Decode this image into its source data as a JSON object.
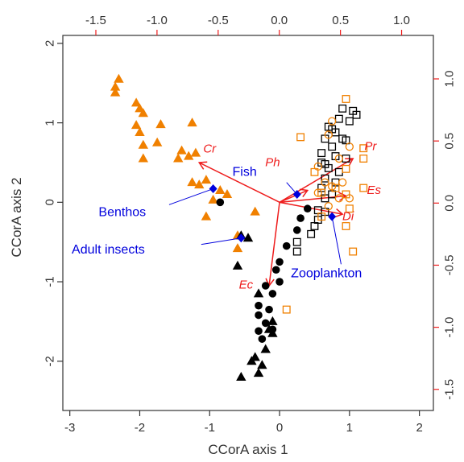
{
  "chart_data": {
    "type": "scatter",
    "xlabel": "CCorA axis 1",
    "ylabel": "CCorA axis 2",
    "xlim": [
      -3.1,
      2.2
    ],
    "ylim": [
      -2.62,
      2.1
    ],
    "xticks": [
      -3,
      -2,
      -1,
      0,
      1,
      2
    ],
    "yticks": [
      -2,
      -1,
      0,
      1,
      2
    ],
    "top_axis": {
      "lim": [
        -1.77,
        1.26
      ],
      "ticks": [
        "-1.5",
        "-1.0",
        "-0.5",
        "0.0",
        "0.5",
        "1.0"
      ],
      "values": [
        -1.5,
        -1.0,
        -0.5,
        0.0,
        0.5,
        1.0
      ]
    },
    "right_axis": {
      "lim": [
        -1.67,
        1.35
      ],
      "ticks": [
        "-1.5",
        "-1.0",
        "-0.5",
        "0.0",
        "0.5",
        "1.0"
      ],
      "values": [
        -1.5,
        -1.0,
        -0.5,
        0.0,
        0.5,
        1.0
      ]
    },
    "colors": {
      "orange": "#f08000",
      "black": "#000000",
      "blue": "#0000dd",
      "red": "#ee1c1c",
      "axis": "#333333",
      "top_axis": "#ee1c1c",
      "right_axis": "#ee1c1c"
    },
    "series": [
      {
        "marker": "triangle-filled",
        "color": "#f08000",
        "points": [
          [
            -2.3,
            1.55
          ],
          [
            -2.35,
            1.45
          ],
          [
            -2.35,
            1.38
          ],
          [
            -2.05,
            1.25
          ],
          [
            -2.0,
            1.18
          ],
          [
            -1.95,
            1.12
          ],
          [
            -2.05,
            0.97
          ],
          [
            -2.0,
            0.88
          ],
          [
            -1.7,
            0.98
          ],
          [
            -1.25,
            1.0
          ],
          [
            -1.75,
            0.75
          ],
          [
            -1.95,
            0.72
          ],
          [
            -1.4,
            0.65
          ],
          [
            -1.2,
            0.62
          ],
          [
            -1.3,
            0.58
          ],
          [
            -1.45,
            0.55
          ],
          [
            -1.95,
            0.55
          ],
          [
            -1.25,
            0.25
          ],
          [
            -1.15,
            0.22
          ],
          [
            -1.05,
            0.28
          ],
          [
            -0.85,
            0.15
          ],
          [
            -0.75,
            0.1
          ],
          [
            -0.95,
            0.03
          ],
          [
            -1.05,
            -0.18
          ],
          [
            -0.35,
            -0.12
          ],
          [
            -0.6,
            -0.42
          ],
          [
            -0.6,
            -0.58
          ]
        ]
      },
      {
        "marker": "triangle-filled",
        "color": "#000000",
        "points": [
          [
            -0.55,
            -0.42
          ],
          [
            -0.45,
            -0.45
          ],
          [
            -0.6,
            -0.8
          ],
          [
            -0.3,
            -1.15
          ],
          [
            -0.1,
            -1.5
          ],
          [
            -0.1,
            -1.65
          ],
          [
            -0.15,
            -1.6
          ],
          [
            -0.2,
            -1.85
          ],
          [
            -0.35,
            -1.95
          ],
          [
            -0.4,
            -2.0
          ],
          [
            -0.25,
            -2.05
          ],
          [
            -0.3,
            -2.15
          ],
          [
            -0.55,
            -2.2
          ]
        ]
      },
      {
        "marker": "circle-filled",
        "color": "#000000",
        "points": [
          [
            -0.85,
            0.0
          ],
          [
            0.4,
            -0.08
          ],
          [
            0.3,
            -0.2
          ],
          [
            0.25,
            -0.35
          ],
          [
            0.1,
            -0.55
          ],
          [
            0.0,
            -0.75
          ],
          [
            -0.05,
            -0.85
          ],
          [
            0.0,
            -1.0
          ],
          [
            -0.2,
            -1.05
          ],
          [
            -0.1,
            -1.15
          ],
          [
            -0.3,
            -1.3
          ],
          [
            -0.15,
            -1.35
          ],
          [
            -0.3,
            -1.42
          ],
          [
            -0.2,
            -1.52
          ],
          [
            -0.1,
            -1.6
          ],
          [
            -0.3,
            -1.62
          ],
          [
            -0.25,
            -1.72
          ]
        ]
      },
      {
        "marker": "square-open",
        "color": "#000000",
        "points": [
          [
            0.9,
            1.18
          ],
          [
            1.05,
            1.15
          ],
          [
            1.1,
            1.1
          ],
          [
            0.85,
            1.05
          ],
          [
            1.0,
            1.02
          ],
          [
            0.7,
            0.95
          ],
          [
            0.75,
            0.92
          ],
          [
            0.8,
            0.88
          ],
          [
            0.65,
            0.8
          ],
          [
            0.9,
            0.8
          ],
          [
            0.95,
            0.78
          ],
          [
            0.75,
            0.7
          ],
          [
            0.6,
            0.62
          ],
          [
            0.8,
            0.58
          ],
          [
            0.95,
            0.55
          ],
          [
            0.6,
            0.5
          ],
          [
            0.65,
            0.48
          ],
          [
            0.7,
            0.43
          ],
          [
            0.85,
            0.38
          ],
          [
            0.65,
            0.3
          ],
          [
            0.8,
            0.25
          ],
          [
            0.6,
            0.18
          ],
          [
            0.75,
            0.1
          ],
          [
            0.65,
            0.05
          ],
          [
            0.55,
            -0.1
          ],
          [
            0.65,
            -0.12
          ],
          [
            0.55,
            -0.22
          ],
          [
            0.5,
            -0.3
          ],
          [
            0.45,
            -0.4
          ],
          [
            0.25,
            -0.5
          ],
          [
            0.25,
            -0.62
          ]
        ]
      },
      {
        "marker": "square-open",
        "color": "#f08000",
        "points": [
          [
            0.95,
            1.3
          ],
          [
            0.3,
            0.82
          ],
          [
            1.2,
            0.68
          ],
          [
            0.95,
            0.42
          ],
          [
            1.2,
            0.55
          ],
          [
            0.5,
            0.38
          ],
          [
            0.8,
            0.18
          ],
          [
            1.2,
            0.18
          ],
          [
            0.6,
            0.12
          ],
          [
            0.95,
            0.1
          ],
          [
            1.0,
            -0.08
          ],
          [
            0.6,
            -0.18
          ],
          [
            0.95,
            -0.3
          ],
          [
            1.05,
            -0.62
          ],
          [
            0.1,
            -1.35
          ]
        ]
      },
      {
        "marker": "circle-open",
        "color": "#f08000",
        "points": [
          [
            0.75,
            1.02
          ],
          [
            0.7,
            0.85
          ],
          [
            1.0,
            0.7
          ],
          [
            0.85,
            0.55
          ],
          [
            0.55,
            0.45
          ],
          [
            0.65,
            0.25
          ],
          [
            0.9,
            0.25
          ],
          [
            0.75,
            0.2
          ],
          [
            0.55,
            0.12
          ],
          [
            0.85,
            0.05
          ],
          [
            1.0,
            0.05
          ],
          [
            0.7,
            -0.05
          ]
        ]
      }
    ],
    "vectors": [
      {
        "label": "Cr",
        "to": [
          -1.15,
          0.5
        ],
        "label_at": [
          -1.0,
          0.67
        ]
      },
      {
        "label": "Ph",
        "to": [
          0.4,
          0.15
        ],
        "label_at": [
          -0.1,
          0.5
        ]
      },
      {
        "label": "Pr",
        "to": [
          1.05,
          0.55
        ],
        "label_at": [
          1.3,
          0.7
        ]
      },
      {
        "label": "Es",
        "to": [
          0.95,
          0.08
        ],
        "label_at": [
          1.35,
          0.15
        ]
      },
      {
        "label": "Di",
        "to": [
          0.9,
          -0.15
        ],
        "label_at": [
          0.98,
          -0.18
        ]
      },
      {
        "label": "Ec",
        "to": [
          -0.15,
          -1.05
        ],
        "label_at": [
          -0.48,
          -1.04
        ]
      }
    ],
    "vector_origin": [
      0.0,
      0.0
    ],
    "groups": [
      {
        "label": "Benthos",
        "point": [
          -0.95,
          0.17
        ],
        "label_at": [
          -2.25,
          -0.13
        ],
        "line_from": [
          -1.58,
          -0.03
        ]
      },
      {
        "label": "Fish",
        "point": [
          0.25,
          0.1
        ],
        "label_at": [
          -0.5,
          0.38
        ],
        "line_from": [
          0.1,
          0.25
        ]
      },
      {
        "label": "Adult insects",
        "point": [
          -0.55,
          -0.45
        ],
        "label_at": [
          -2.45,
          -0.6
        ],
        "line_from": [
          -1.12,
          -0.53
        ]
      },
      {
        "label": "Zooplankton",
        "point": [
          0.75,
          -0.18
        ],
        "label_at": [
          0.67,
          -0.9
        ],
        "line_from": [
          0.88,
          -0.78
        ]
      }
    ]
  }
}
